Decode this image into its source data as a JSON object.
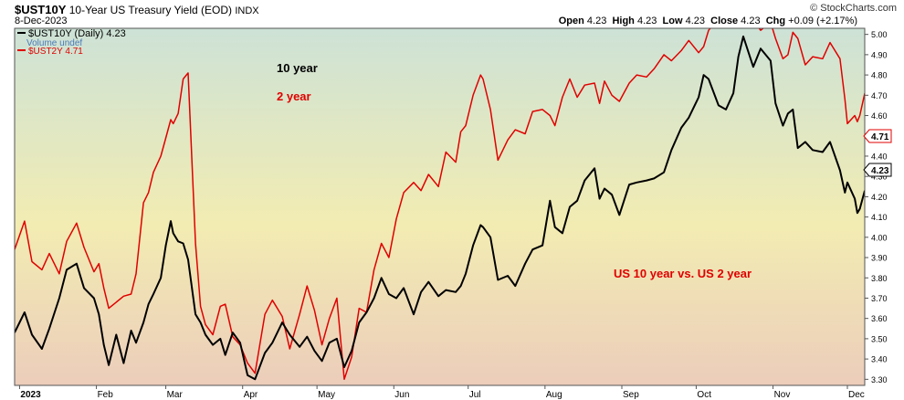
{
  "header": {
    "symbol": "$UST10Y",
    "name": "10-Year US Treasury Yield (EOD)",
    "exchange": "INDX",
    "date": "8-Dec-2023",
    "stats": {
      "open_label": "Open",
      "open": "4.23",
      "high_label": "High",
      "high": "4.23",
      "low_label": "Low",
      "low": "4.23",
      "close_label": "Close",
      "close": "4.23",
      "chg_label": "Chg",
      "chg": "+0.09 (+2.17%)"
    },
    "credit": "© StockCharts.com"
  },
  "legend": [
    {
      "label": "$UST10Y (Daily) 4.23",
      "color": "#000000"
    },
    {
      "label": "Volume undef",
      "color": "#4a7ab8"
    },
    {
      "label": "$UST2Y 4.71",
      "color": "#e00000"
    }
  ],
  "annotations": {
    "ten_year": "10 year",
    "two_year": "2 year",
    "comparison": "US 10 year vs. US 2 year"
  },
  "last_value_tags": {
    "ust2y": "4.71",
    "ust10y": "4.23"
  },
  "chart_data": {
    "type": "line",
    "x_tick_labels": [
      "2023",
      "Feb",
      "Mar",
      "Apr",
      "May",
      "Jun",
      "Jul",
      "Aug",
      "Sep",
      "Oct",
      "Nov",
      "Dec"
    ],
    "x_tick_dates": [
      "2023-01-01",
      "2023-02-01",
      "2023-03-01",
      "2023-04-01",
      "2023-05-01",
      "2023-06-01",
      "2023-07-01",
      "2023-08-01",
      "2023-09-01",
      "2023-10-01",
      "2023-11-01",
      "2023-12-01"
    ],
    "xlim": [
      "2022-12-30",
      "2023-12-08"
    ],
    "y_ticks": [
      "3.30",
      "3.40",
      "3.50",
      "3.60",
      "3.70",
      "3.80",
      "3.90",
      "4.00",
      "4.10",
      "4.20",
      "4.30",
      "4.40",
      "4.50",
      "4.60",
      "4.70",
      "4.80",
      "4.90",
      "5.00"
    ],
    "ylim": [
      3.27,
      5.03
    ],
    "grid": false,
    "series": [
      {
        "name": "$UST10Y",
        "color": "#000000",
        "points": [
          [
            "2022-12-30",
            3.53
          ],
          [
            "2023-01-03",
            3.63
          ],
          [
            "2023-01-06",
            3.52
          ],
          [
            "2023-01-10",
            3.45
          ],
          [
            "2023-01-13",
            3.55
          ],
          [
            "2023-01-17",
            3.7
          ],
          [
            "2023-01-20",
            3.84
          ],
          [
            "2023-01-24",
            3.87
          ],
          [
            "2023-01-27",
            3.75
          ],
          [
            "2023-01-31",
            3.7
          ],
          [
            "2023-02-02",
            3.62
          ],
          [
            "2023-02-04",
            3.47
          ],
          [
            "2023-02-06",
            3.37
          ],
          [
            "2023-02-09",
            3.52
          ],
          [
            "2023-02-12",
            3.38
          ],
          [
            "2023-02-15",
            3.54
          ],
          [
            "2023-02-17",
            3.48
          ],
          [
            "2023-02-20",
            3.58
          ],
          [
            "2023-02-22",
            3.67
          ],
          [
            "2023-02-24",
            3.72
          ],
          [
            "2023-02-27",
            3.8
          ],
          [
            "2023-03-01",
            3.96
          ],
          [
            "2023-03-03",
            4.08
          ],
          [
            "2023-03-04",
            4.02
          ],
          [
            "2023-03-06",
            3.98
          ],
          [
            "2023-03-08",
            3.97
          ],
          [
            "2023-03-10",
            3.89
          ],
          [
            "2023-03-13",
            3.62
          ],
          [
            "2023-03-15",
            3.58
          ],
          [
            "2023-03-17",
            3.52
          ],
          [
            "2023-03-20",
            3.47
          ],
          [
            "2023-03-23",
            3.5
          ],
          [
            "2023-03-25",
            3.42
          ],
          [
            "2023-03-28",
            3.53
          ],
          [
            "2023-03-31",
            3.48
          ],
          [
            "2023-04-03",
            3.32
          ],
          [
            "2023-04-06",
            3.3
          ],
          [
            "2023-04-10",
            3.43
          ],
          [
            "2023-04-13",
            3.48
          ],
          [
            "2023-04-17",
            3.58
          ],
          [
            "2023-04-20",
            3.52
          ],
          [
            "2023-04-24",
            3.46
          ],
          [
            "2023-04-27",
            3.51
          ],
          [
            "2023-04-30",
            3.44
          ],
          [
            "2023-05-03",
            3.39
          ],
          [
            "2023-05-06",
            3.48
          ],
          [
            "2023-05-09",
            3.5
          ],
          [
            "2023-05-12",
            3.36
          ],
          [
            "2023-05-15",
            3.44
          ],
          [
            "2023-05-18",
            3.58
          ],
          [
            "2023-05-21",
            3.63
          ],
          [
            "2023-05-24",
            3.7
          ],
          [
            "2023-05-27",
            3.8
          ],
          [
            "2023-05-30",
            3.72
          ],
          [
            "2023-06-02",
            3.7
          ],
          [
            "2023-06-05",
            3.75
          ],
          [
            "2023-06-09",
            3.62
          ],
          [
            "2023-06-12",
            3.73
          ],
          [
            "2023-06-15",
            3.78
          ],
          [
            "2023-06-19",
            3.71
          ],
          [
            "2023-06-22",
            3.74
          ],
          [
            "2023-06-26",
            3.73
          ],
          [
            "2023-06-28",
            3.76
          ],
          [
            "2023-06-30",
            3.82
          ],
          [
            "2023-07-03",
            3.96
          ],
          [
            "2023-07-06",
            4.06
          ],
          [
            "2023-07-07",
            4.05
          ],
          [
            "2023-07-10",
            4.0
          ],
          [
            "2023-07-13",
            3.79
          ],
          [
            "2023-07-17",
            3.81
          ],
          [
            "2023-07-20",
            3.76
          ],
          [
            "2023-07-24",
            3.87
          ],
          [
            "2023-07-27",
            3.94
          ],
          [
            "2023-07-31",
            3.96
          ],
          [
            "2023-08-03",
            4.18
          ],
          [
            "2023-08-05",
            4.05
          ],
          [
            "2023-08-08",
            4.02
          ],
          [
            "2023-08-11",
            4.15
          ],
          [
            "2023-08-14",
            4.18
          ],
          [
            "2023-08-17",
            4.28
          ],
          [
            "2023-08-21",
            4.34
          ],
          [
            "2023-08-23",
            4.19
          ],
          [
            "2023-08-25",
            4.24
          ],
          [
            "2023-08-28",
            4.21
          ],
          [
            "2023-08-31",
            4.11
          ],
          [
            "2023-09-04",
            4.26
          ],
          [
            "2023-09-07",
            4.27
          ],
          [
            "2023-09-11",
            4.28
          ],
          [
            "2023-09-14",
            4.29
          ],
          [
            "2023-09-18",
            4.32
          ],
          [
            "2023-09-21",
            4.43
          ],
          [
            "2023-09-25",
            4.54
          ],
          [
            "2023-09-28",
            4.59
          ],
          [
            "2023-10-02",
            4.69
          ],
          [
            "2023-10-04",
            4.8
          ],
          [
            "2023-10-06",
            4.78
          ],
          [
            "2023-10-10",
            4.65
          ],
          [
            "2023-10-13",
            4.63
          ],
          [
            "2023-10-16",
            4.71
          ],
          [
            "2023-10-18",
            4.89
          ],
          [
            "2023-10-20",
            4.99
          ],
          [
            "2023-10-24",
            4.84
          ],
          [
            "2023-10-27",
            4.93
          ],
          [
            "2023-10-31",
            4.87
          ],
          [
            "2023-11-02",
            4.66
          ],
          [
            "2023-11-05",
            4.55
          ],
          [
            "2023-11-07",
            4.61
          ],
          [
            "2023-11-09",
            4.63
          ],
          [
            "2023-11-11",
            4.44
          ],
          [
            "2023-11-14",
            4.47
          ],
          [
            "2023-11-17",
            4.43
          ],
          [
            "2023-11-21",
            4.42
          ],
          [
            "2023-11-24",
            4.47
          ],
          [
            "2023-11-28",
            4.33
          ],
          [
            "2023-11-30",
            4.22
          ],
          [
            "2023-12-01",
            4.27
          ],
          [
            "2023-12-04",
            4.19
          ],
          [
            "2023-12-05",
            4.12
          ],
          [
            "2023-12-06",
            4.14
          ],
          [
            "2023-12-08",
            4.23
          ]
        ]
      },
      {
        "name": "$UST2Y",
        "color": "#e00000",
        "points": [
          [
            "2022-12-30",
            3.94
          ],
          [
            "2023-01-03",
            4.08
          ],
          [
            "2023-01-06",
            3.88
          ],
          [
            "2023-01-10",
            3.84
          ],
          [
            "2023-01-13",
            3.92
          ],
          [
            "2023-01-17",
            3.82
          ],
          [
            "2023-01-20",
            3.98
          ],
          [
            "2023-01-24",
            4.07
          ],
          [
            "2023-01-27",
            3.95
          ],
          [
            "2023-01-31",
            3.83
          ],
          [
            "2023-02-02",
            3.87
          ],
          [
            "2023-02-04",
            3.75
          ],
          [
            "2023-02-06",
            3.65
          ],
          [
            "2023-02-09",
            3.68
          ],
          [
            "2023-02-12",
            3.71
          ],
          [
            "2023-02-15",
            3.72
          ],
          [
            "2023-02-17",
            3.82
          ],
          [
            "2023-02-20",
            4.17
          ],
          [
            "2023-02-22",
            4.22
          ],
          [
            "2023-02-24",
            4.32
          ],
          [
            "2023-02-27",
            4.4
          ],
          [
            "2023-03-01",
            4.49
          ],
          [
            "2023-03-03",
            4.58
          ],
          [
            "2023-03-04",
            4.56
          ],
          [
            "2023-03-06",
            4.61
          ],
          [
            "2023-03-08",
            4.78
          ],
          [
            "2023-03-10",
            4.81
          ],
          [
            "2023-03-13",
            3.97
          ],
          [
            "2023-03-15",
            3.66
          ],
          [
            "2023-03-17",
            3.57
          ],
          [
            "2023-03-20",
            3.52
          ],
          [
            "2023-03-23",
            3.66
          ],
          [
            "2023-03-25",
            3.67
          ],
          [
            "2023-03-28",
            3.51
          ],
          [
            "2023-03-31",
            3.47
          ],
          [
            "2023-04-03",
            3.38
          ],
          [
            "2023-04-06",
            3.33
          ],
          [
            "2023-04-10",
            3.62
          ],
          [
            "2023-04-13",
            3.69
          ],
          [
            "2023-04-17",
            3.61
          ],
          [
            "2023-04-20",
            3.45
          ],
          [
            "2023-04-24",
            3.62
          ],
          [
            "2023-04-27",
            3.76
          ],
          [
            "2023-04-30",
            3.64
          ],
          [
            "2023-05-03",
            3.47
          ],
          [
            "2023-05-06",
            3.6
          ],
          [
            "2023-05-09",
            3.7
          ],
          [
            "2023-05-12",
            3.3
          ],
          [
            "2023-05-15",
            3.41
          ],
          [
            "2023-05-18",
            3.65
          ],
          [
            "2023-05-21",
            3.63
          ],
          [
            "2023-05-24",
            3.84
          ],
          [
            "2023-05-27",
            3.97
          ],
          [
            "2023-05-30",
            3.9
          ],
          [
            "2023-06-02",
            4.09
          ],
          [
            "2023-06-05",
            4.22
          ],
          [
            "2023-06-09",
            4.27
          ],
          [
            "2023-06-12",
            4.23
          ],
          [
            "2023-06-15",
            4.31
          ],
          [
            "2023-06-19",
            4.25
          ],
          [
            "2023-06-22",
            4.42
          ],
          [
            "2023-06-26",
            4.37
          ],
          [
            "2023-06-28",
            4.52
          ],
          [
            "2023-06-30",
            4.55
          ],
          [
            "2023-07-03",
            4.7
          ],
          [
            "2023-07-06",
            4.8
          ],
          [
            "2023-07-07",
            4.78
          ],
          [
            "2023-07-10",
            4.63
          ],
          [
            "2023-07-13",
            4.38
          ],
          [
            "2023-07-17",
            4.48
          ],
          [
            "2023-07-20",
            4.53
          ],
          [
            "2023-07-24",
            4.51
          ],
          [
            "2023-07-27",
            4.62
          ],
          [
            "2023-07-31",
            4.63
          ],
          [
            "2023-08-03",
            4.6
          ],
          [
            "2023-08-05",
            4.55
          ],
          [
            "2023-08-08",
            4.69
          ],
          [
            "2023-08-11",
            4.78
          ],
          [
            "2023-08-14",
            4.69
          ],
          [
            "2023-08-17",
            4.75
          ],
          [
            "2023-08-21",
            4.76
          ],
          [
            "2023-08-23",
            4.66
          ],
          [
            "2023-08-25",
            4.77
          ],
          [
            "2023-08-28",
            4.7
          ],
          [
            "2023-08-31",
            4.67
          ],
          [
            "2023-09-04",
            4.76
          ],
          [
            "2023-09-07",
            4.8
          ],
          [
            "2023-09-11",
            4.79
          ],
          [
            "2023-09-14",
            4.83
          ],
          [
            "2023-09-18",
            4.9
          ],
          [
            "2023-09-21",
            4.87
          ],
          [
            "2023-09-25",
            4.92
          ],
          [
            "2023-09-28",
            4.97
          ],
          [
            "2023-10-02",
            4.91
          ],
          [
            "2023-10-04",
            4.94
          ],
          [
            "2023-10-06",
            5.02
          ],
          [
            "2023-10-10",
            5.08
          ],
          [
            "2023-10-13",
            5.05
          ],
          [
            "2023-10-16",
            5.07
          ],
          [
            "2023-10-18",
            5.21
          ],
          [
            "2023-10-20",
            5.1
          ],
          [
            "2023-10-24",
            5.07
          ],
          [
            "2023-10-27",
            5.02
          ],
          [
            "2023-10-31",
            5.06
          ],
          [
            "2023-11-02",
            4.98
          ],
          [
            "2023-11-05",
            4.88
          ],
          [
            "2023-11-07",
            4.9
          ],
          [
            "2023-11-09",
            5.01
          ],
          [
            "2023-11-11",
            4.98
          ],
          [
            "2023-11-14",
            4.85
          ],
          [
            "2023-11-17",
            4.89
          ],
          [
            "2023-11-21",
            4.88
          ],
          [
            "2023-11-24",
            4.96
          ],
          [
            "2023-11-28",
            4.88
          ],
          [
            "2023-11-30",
            4.68
          ],
          [
            "2023-12-01",
            4.56
          ],
          [
            "2023-12-04",
            4.6
          ],
          [
            "2023-12-05",
            4.57
          ],
          [
            "2023-12-06",
            4.6
          ],
          [
            "2023-12-08",
            4.71
          ]
        ]
      }
    ]
  }
}
